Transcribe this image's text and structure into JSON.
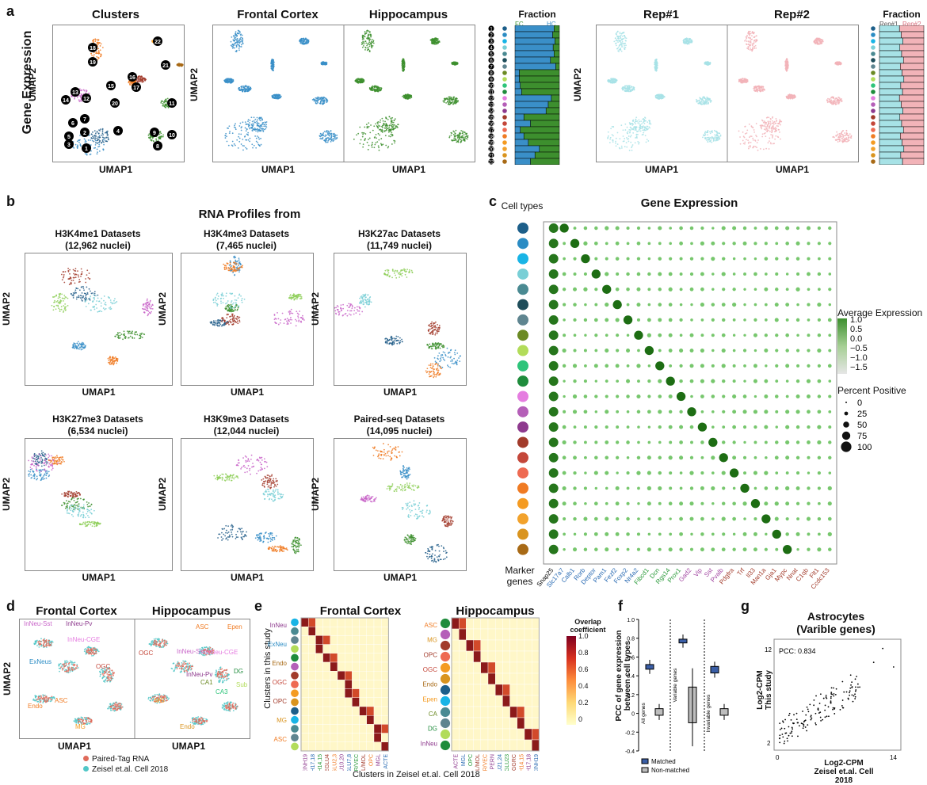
{
  "panel_a": {
    "label": "a",
    "side_label": "Gene Expression",
    "titles": {
      "clusters": "Clusters",
      "fc": "Frontal Cortex",
      "hc": "Hippocampus",
      "rep1": "Rep#1",
      "rep2": "Rep#2"
    },
    "fraction_title": "Fraction",
    "fraction_left_labels": [
      "FC",
      "HC"
    ],
    "fraction_right_labels": [
      "Rep#1",
      "Rep#2"
    ],
    "umap1": "UMAP1",
    "umap2": "UMAP2",
    "cluster_numbers": [
      "1",
      "2",
      "3",
      "4",
      "5",
      "6",
      "7",
      "8",
      "9",
      "10",
      "11",
      "12",
      "13",
      "14",
      "15",
      "16",
      "17",
      "18",
      "19",
      "20",
      "21",
      "22"
    ]
  },
  "panel_b": {
    "label": "b",
    "heading": "RNA Profiles from",
    "plots": [
      {
        "t1": "H3K4me1 Datasets",
        "t2": "(12,962 nuclei)"
      },
      {
        "t1": "H3K4me3 Datasets",
        "t2": "(7,465 nuclei)"
      },
      {
        "t1": "H3K27ac Datasets",
        "t2": "(11,749 nuclei)"
      },
      {
        "t1": "H3K27me3 Datasets",
        "t2": "(6,534 nuclei)"
      },
      {
        "t1": "H3K9me3 Datasets",
        "t2": "(12,044 nuclei)"
      },
      {
        "t1": "Paired-seq Datasets",
        "t2": "(14,095 nuclei)"
      }
    ],
    "umap1": "UMAP1",
    "umap2": "UMAP2"
  },
  "panel_c": {
    "label": "c",
    "title": "Gene Expression",
    "cell_types_label": "Cell types",
    "marker_label": "Marker genes",
    "genes": [
      "Snap25",
      "Slc17a7",
      "Calb1",
      "Rorb",
      "Deptor",
      "Pam1",
      "Fezf2",
      "Foxp2",
      "Nr4a2",
      "Fibcd1",
      "Dcn",
      "Rgs14",
      "Prox1",
      "Gad2",
      "Vip",
      "Sst",
      "Pvalb",
      "Pdgfra",
      "Trf",
      "Il33",
      "Man1a",
      "Gja1",
      "Mypc",
      "Nnat",
      "C1qb",
      "Flt1",
      "Ccdc153"
    ],
    "colorbar_title": "Average Expression",
    "colorbar_ticks": [
      "1.0",
      "0.5",
      "0.0",
      "−0.5",
      "−1.0",
      "−1.5"
    ],
    "size_title": "Percent Positive",
    "size_ticks": [
      "0",
      "25",
      "50",
      "75",
      "100"
    ]
  },
  "panel_d": {
    "label": "d",
    "titles": [
      "Frontal Cortex",
      "Hippocampus"
    ],
    "fc_labels": [
      "InNeu-Sst",
      "InNeu-Pv",
      "InNeu-CGE",
      "ExNeus",
      "OGC",
      "ASC",
      "Endo",
      "MG"
    ],
    "hc_labels": [
      "ASC",
      "Epen",
      "OGC",
      "InNeu-Sst",
      "InNeu-CGE",
      "DG",
      "InNeu-Pv",
      "CA1",
      "Sub",
      "CA3",
      "MG",
      "Endo"
    ],
    "umap1": "UMAP1",
    "umap2": "UMAP2",
    "legend": [
      "Paired-Tag RNA",
      "Zeisel et.al. Cell 2018"
    ]
  },
  "panel_e": {
    "label": "e",
    "titles": [
      "Frontal Cortex",
      "Hippocampus"
    ],
    "ylabel": "Clusters in this study",
    "xlabel": "Clusters in Zeisel et.al. Cell 2018",
    "fc_rows": [
      "InNeu",
      "ExNeu",
      "Endo",
      "OGC",
      "OPC",
      "MG",
      "ASC"
    ],
    "hc_rows": [
      "ASC",
      "MG",
      "OPC",
      "OGC",
      "Endo",
      "Epen",
      "CA",
      "DG",
      "InNeu"
    ],
    "fc_cols": [
      "TEINH19",
      "TEINH17,18",
      "TEINH14,15",
      "TEGLU4",
      "TEGLU2,3",
      "TEGLU10,20",
      "TEGLU7,8",
      "PER/VEC",
      "MFOL/MOL",
      "OPC",
      "MGL",
      "ACTE"
    ],
    "hc_cols": [
      "ACTE",
      "MGL",
      "OPC",
      "MFOL/MOL",
      "PER/VEC",
      "PERN",
      "TEGLU21,24",
      "TEGLU23",
      "DGGRC",
      "TEINH14,15",
      "TEINH17,18",
      "TEINH19"
    ],
    "colorbar_title": "Overlap coefficient",
    "colorbar_ticks": [
      "1.0",
      "0.8",
      "0.6",
      "0.4",
      "0.2",
      "0"
    ]
  },
  "panel_f": {
    "label": "f",
    "ylabel": "PCC of gene expression between cell types",
    "yticks": [
      "1.0",
      "0.8",
      "0.6",
      "0.4",
      "0.2",
      "0",
      "-0.2",
      "-0.4"
    ],
    "groups": [
      "All genes",
      "Variable genes",
      "Invariable genes"
    ],
    "legend": [
      "Matched",
      "Non-matched"
    ]
  },
  "panel_g": {
    "label": "g",
    "title1": "Astrocytes",
    "title2": "(Varible genes)",
    "pcc": "PCC: 0.834",
    "ylabel1": "Log2-CPM",
    "ylabel2": "This study",
    "xlabel1": "Log2-CPM",
    "xlabel2": "Zeisel et.al. Cell 2018",
    "xticks": [
      "0",
      "14"
    ],
    "yticks": [
      "12",
      "2"
    ]
  },
  "colors": {
    "fc": "#3a8fc8",
    "hc": "#3d8f2e",
    "rep1": "#a7e2e6",
    "rep2": "#f2b3b8",
    "matched": "#3a5ea6",
    "nonmatched": "#bdbdbd",
    "paired": "#e06b5b",
    "zeisel": "#52c7c7"
  }
}
